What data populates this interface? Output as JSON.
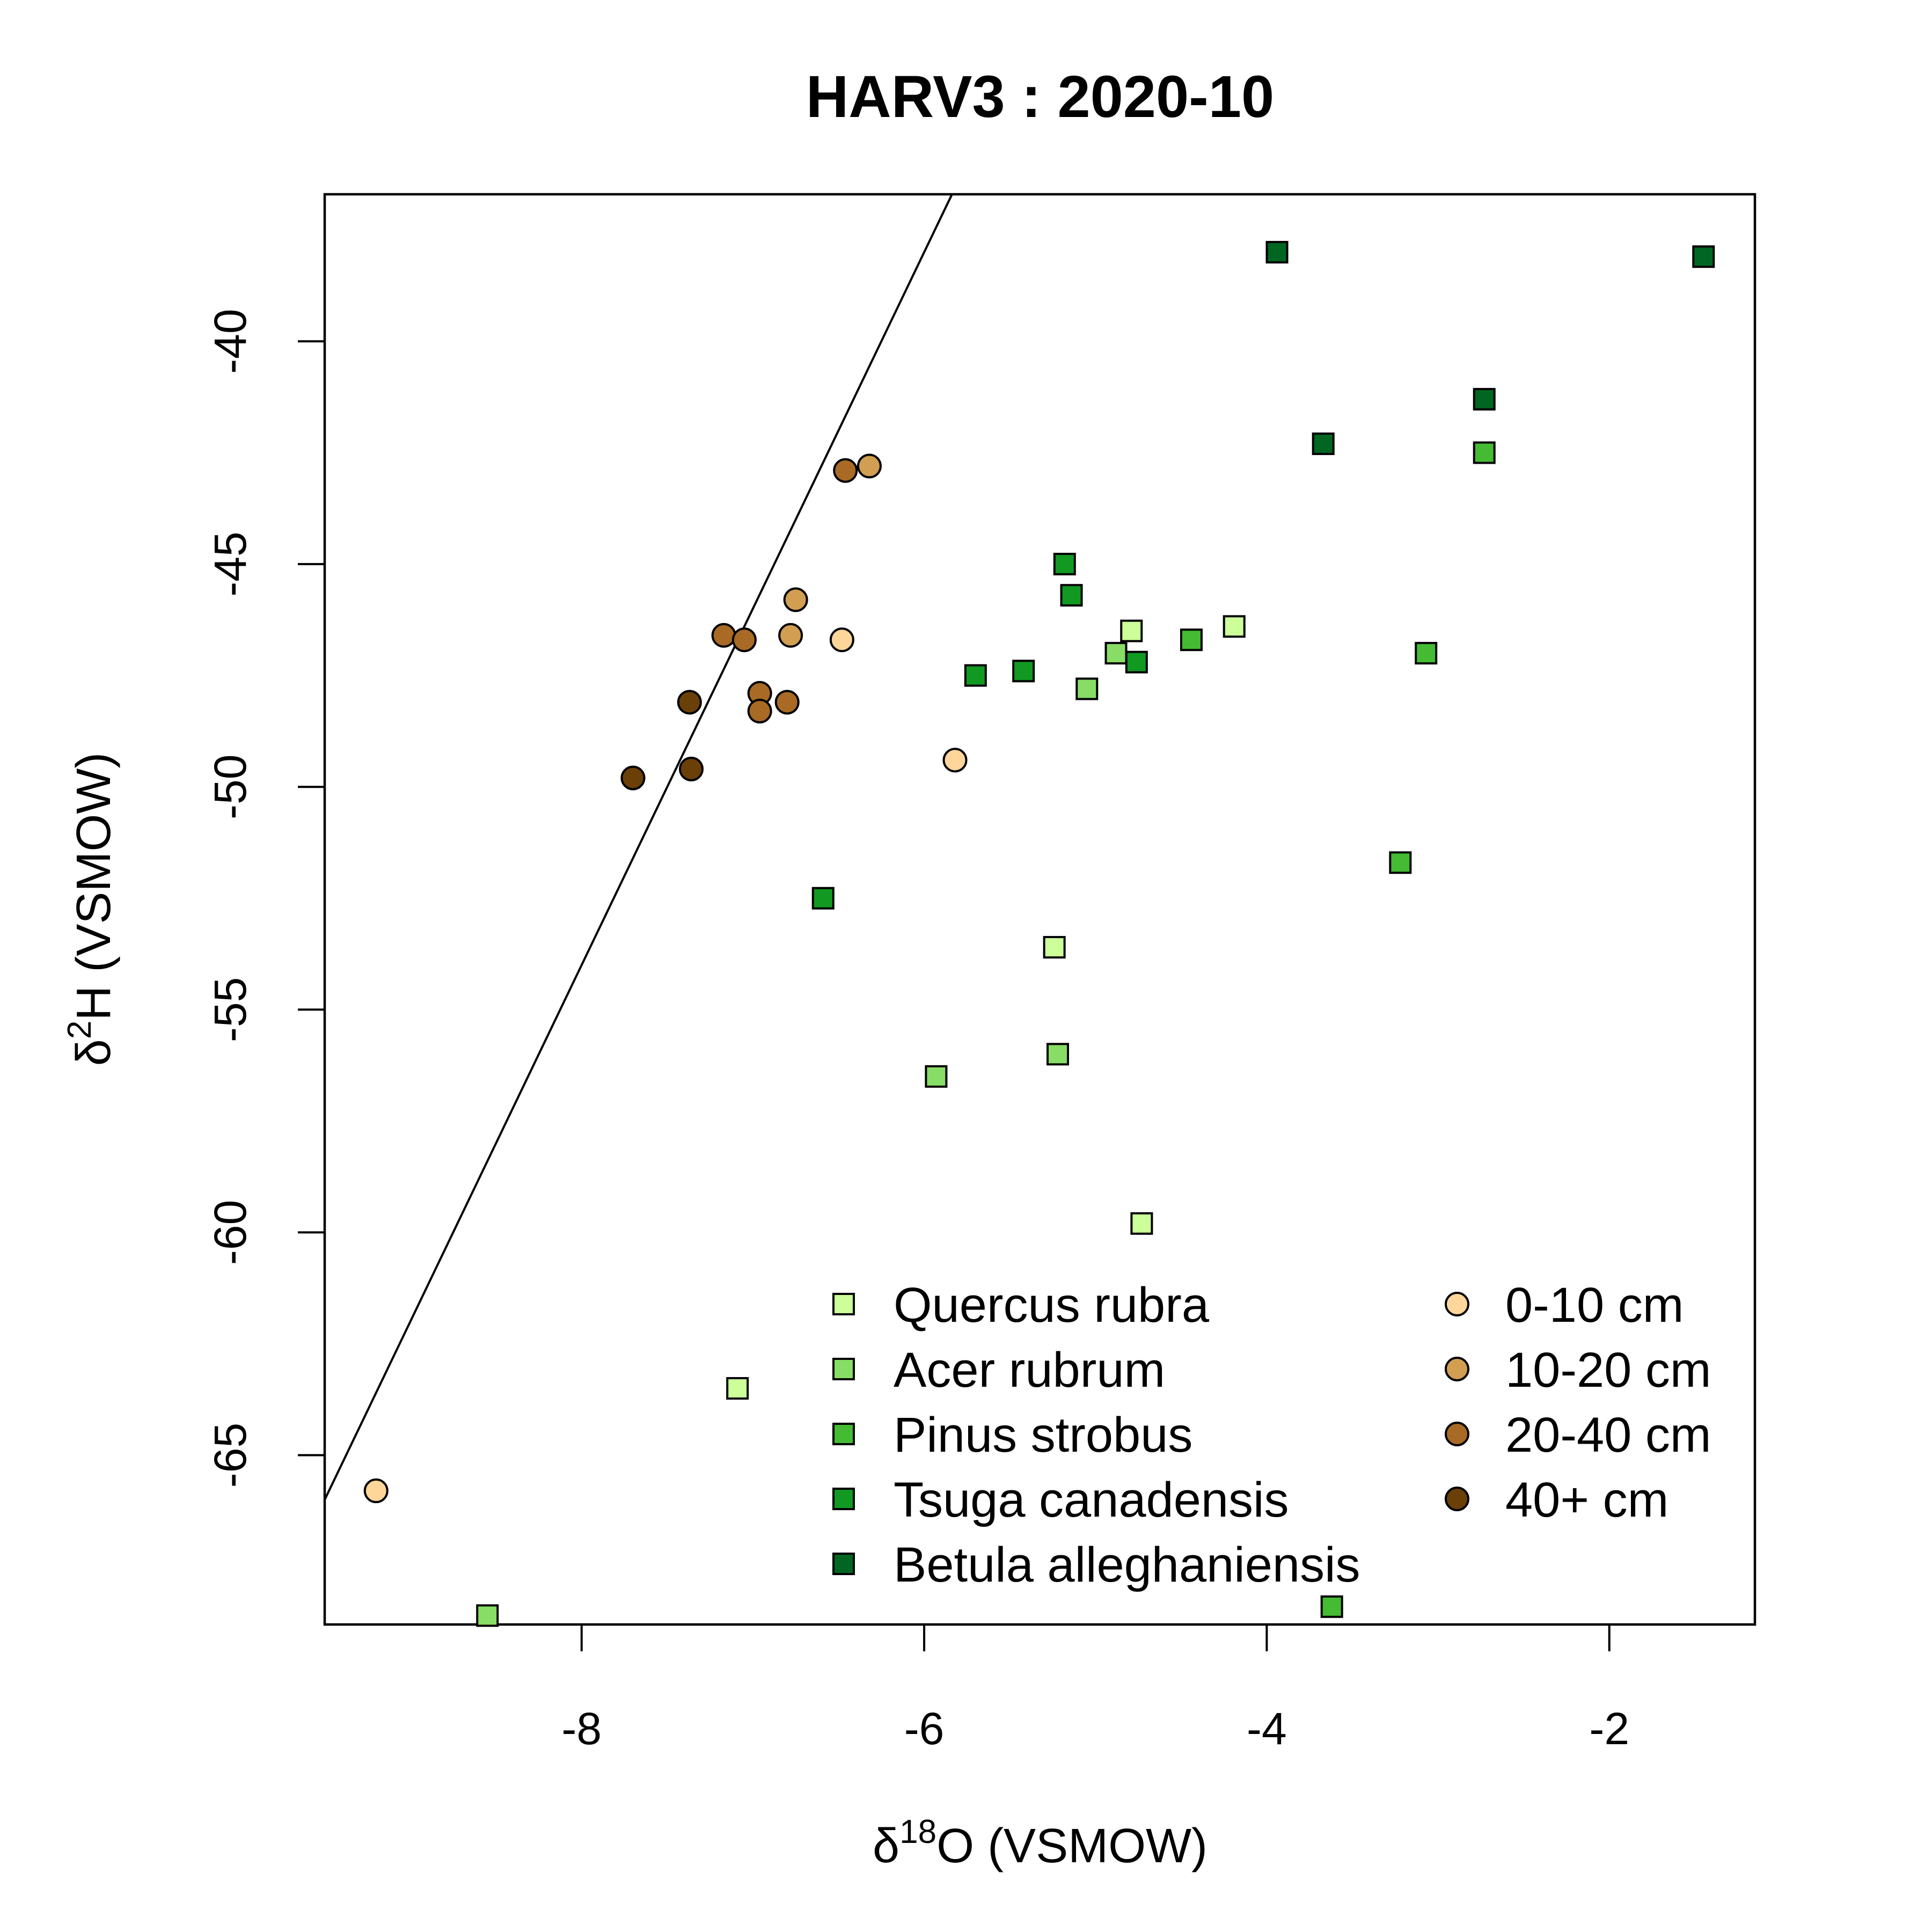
{
  "chart_data": {
    "type": "scatter",
    "title": "HARV3 : 2020-10",
    "xlabel": {
      "delta": "δ",
      "sup": "18",
      "rest": "O (VSMOW)"
    },
    "ylabel": {
      "delta": "δ",
      "sup": "2",
      "rest": "H (VSMOW)"
    },
    "xlim": [
      -9.5,
      -1.15
    ],
    "ylim": [
      -68.8,
      -36.7
    ],
    "xticks": [
      -8,
      -6,
      -4,
      -2
    ],
    "yticks": [
      -40,
      -45,
      -50,
      -55,
      -60,
      -65
    ],
    "grid": false,
    "legend_placement": "bottom-right",
    "reference_line": {
      "slope": 8,
      "intercept": 10
    },
    "species": [
      {
        "name": "Quercus rubra",
        "color": "#ccff99",
        "marker": "square",
        "points": [
          [
            -7.09,
            -63.5
          ],
          [
            -5.24,
            -53.6
          ],
          [
            -4.79,
            -46.5
          ],
          [
            -4.73,
            -59.8
          ],
          [
            -4.19,
            -46.4
          ]
        ]
      },
      {
        "name": "Acer rubrum",
        "color": "#88dd66",
        "marker": "square",
        "points": [
          [
            -8.55,
            -68.6
          ],
          [
            -5.93,
            -56.5
          ],
          [
            -5.22,
            -56.0
          ],
          [
            -5.05,
            -47.8
          ],
          [
            -4.88,
            -47.0
          ]
        ]
      },
      {
        "name": "Pinus strobus",
        "color": "#44bb33",
        "marker": "square",
        "points": [
          [
            -4.44,
            -46.7
          ],
          [
            -3.62,
            -68.4
          ],
          [
            -3.22,
            -51.7
          ],
          [
            -3.07,
            -47.0
          ],
          [
            -2.73,
            -42.5
          ]
        ]
      },
      {
        "name": "Tsuga canadensis",
        "color": "#119922",
        "marker": "square",
        "points": [
          [
            -6.59,
            -52.5
          ],
          [
            -5.7,
            -47.5
          ],
          [
            -5.42,
            -47.4
          ],
          [
            -5.18,
            -45.0
          ],
          [
            -5.14,
            -45.7
          ],
          [
            -4.76,
            -47.2
          ]
        ]
      },
      {
        "name": "Betula alleghaniensis",
        "color": "#006622",
        "marker": "square",
        "points": [
          [
            -3.94,
            -38.0
          ],
          [
            -3.67,
            -42.3
          ],
          [
            -2.73,
            -41.3
          ],
          [
            -1.45,
            -38.1
          ]
        ]
      }
    ],
    "depths": [
      {
        "name": "0-10 cm",
        "color": "#ffd699",
        "marker": "circle",
        "points": [
          [
            -9.2,
            -65.8
          ],
          [
            -6.48,
            -46.7
          ],
          [
            -5.82,
            -49.4
          ]
        ]
      },
      {
        "name": "10-20 cm",
        "color": "#d29e52",
        "marker": "circle",
        "points": [
          [
            -6.75,
            -45.8
          ],
          [
            -6.78,
            -46.6
          ],
          [
            -6.32,
            -42.8
          ]
        ]
      },
      {
        "name": "20-40 cm",
        "color": "#a86a24",
        "marker": "circle",
        "points": [
          [
            -7.17,
            -46.6
          ],
          [
            -7.05,
            -46.7
          ],
          [
            -6.96,
            -47.9
          ],
          [
            -6.96,
            -48.3
          ],
          [
            -6.8,
            -48.1
          ],
          [
            -6.46,
            -42.9
          ]
        ]
      },
      {
        "name": "40+ cm",
        "color": "#6b4008",
        "marker": "circle",
        "points": [
          [
            -7.7,
            -49.8
          ],
          [
            -7.37,
            -48.1
          ],
          [
            -7.36,
            -49.6
          ]
        ]
      }
    ]
  }
}
